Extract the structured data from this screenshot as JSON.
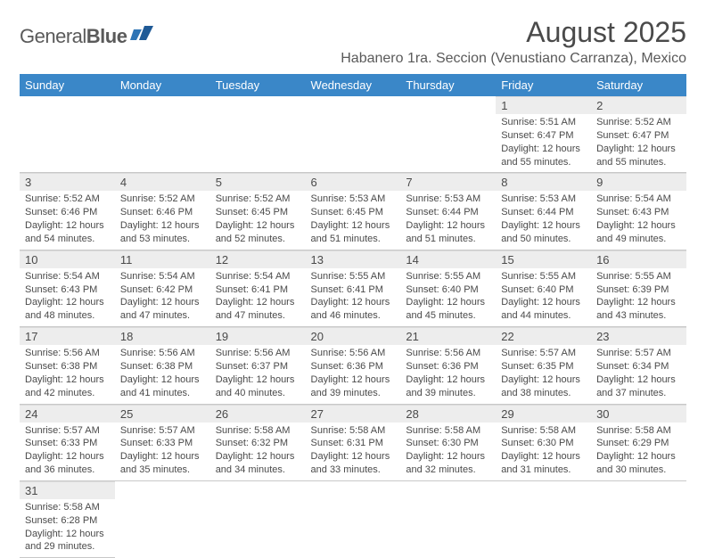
{
  "brand": {
    "name1": "General",
    "name2": "Blue"
  },
  "title": "August 2025",
  "location": "Habanero 1ra. Seccion (Venustiano Carranza), Mexico",
  "header_bg": "#3a87c8",
  "daynum_bg": "#ededed",
  "days": [
    "Sunday",
    "Monday",
    "Tuesday",
    "Wednesday",
    "Thursday",
    "Friday",
    "Saturday"
  ],
  "weeks": [
    [
      null,
      null,
      null,
      null,
      null,
      {
        "n": "1",
        "sr": "5:51 AM",
        "ss": "6:47 PM",
        "dl": "12 hours and 55 minutes."
      },
      {
        "n": "2",
        "sr": "5:52 AM",
        "ss": "6:47 PM",
        "dl": "12 hours and 55 minutes."
      }
    ],
    [
      {
        "n": "3",
        "sr": "5:52 AM",
        "ss": "6:46 PM",
        "dl": "12 hours and 54 minutes."
      },
      {
        "n": "4",
        "sr": "5:52 AM",
        "ss": "6:46 PM",
        "dl": "12 hours and 53 minutes."
      },
      {
        "n": "5",
        "sr": "5:52 AM",
        "ss": "6:45 PM",
        "dl": "12 hours and 52 minutes."
      },
      {
        "n": "6",
        "sr": "5:53 AM",
        "ss": "6:45 PM",
        "dl": "12 hours and 51 minutes."
      },
      {
        "n": "7",
        "sr": "5:53 AM",
        "ss": "6:44 PM",
        "dl": "12 hours and 51 minutes."
      },
      {
        "n": "8",
        "sr": "5:53 AM",
        "ss": "6:44 PM",
        "dl": "12 hours and 50 minutes."
      },
      {
        "n": "9",
        "sr": "5:54 AM",
        "ss": "6:43 PM",
        "dl": "12 hours and 49 minutes."
      }
    ],
    [
      {
        "n": "10",
        "sr": "5:54 AM",
        "ss": "6:43 PM",
        "dl": "12 hours and 48 minutes."
      },
      {
        "n": "11",
        "sr": "5:54 AM",
        "ss": "6:42 PM",
        "dl": "12 hours and 47 minutes."
      },
      {
        "n": "12",
        "sr": "5:54 AM",
        "ss": "6:41 PM",
        "dl": "12 hours and 47 minutes."
      },
      {
        "n": "13",
        "sr": "5:55 AM",
        "ss": "6:41 PM",
        "dl": "12 hours and 46 minutes."
      },
      {
        "n": "14",
        "sr": "5:55 AM",
        "ss": "6:40 PM",
        "dl": "12 hours and 45 minutes."
      },
      {
        "n": "15",
        "sr": "5:55 AM",
        "ss": "6:40 PM",
        "dl": "12 hours and 44 minutes."
      },
      {
        "n": "16",
        "sr": "5:55 AM",
        "ss": "6:39 PM",
        "dl": "12 hours and 43 minutes."
      }
    ],
    [
      {
        "n": "17",
        "sr": "5:56 AM",
        "ss": "6:38 PM",
        "dl": "12 hours and 42 minutes."
      },
      {
        "n": "18",
        "sr": "5:56 AM",
        "ss": "6:38 PM",
        "dl": "12 hours and 41 minutes."
      },
      {
        "n": "19",
        "sr": "5:56 AM",
        "ss": "6:37 PM",
        "dl": "12 hours and 40 minutes."
      },
      {
        "n": "20",
        "sr": "5:56 AM",
        "ss": "6:36 PM",
        "dl": "12 hours and 39 minutes."
      },
      {
        "n": "21",
        "sr": "5:56 AM",
        "ss": "6:36 PM",
        "dl": "12 hours and 39 minutes."
      },
      {
        "n": "22",
        "sr": "5:57 AM",
        "ss": "6:35 PM",
        "dl": "12 hours and 38 minutes."
      },
      {
        "n": "23",
        "sr": "5:57 AM",
        "ss": "6:34 PM",
        "dl": "12 hours and 37 minutes."
      }
    ],
    [
      {
        "n": "24",
        "sr": "5:57 AM",
        "ss": "6:33 PM",
        "dl": "12 hours and 36 minutes."
      },
      {
        "n": "25",
        "sr": "5:57 AM",
        "ss": "6:33 PM",
        "dl": "12 hours and 35 minutes."
      },
      {
        "n": "26",
        "sr": "5:58 AM",
        "ss": "6:32 PM",
        "dl": "12 hours and 34 minutes."
      },
      {
        "n": "27",
        "sr": "5:58 AM",
        "ss": "6:31 PM",
        "dl": "12 hours and 33 minutes."
      },
      {
        "n": "28",
        "sr": "5:58 AM",
        "ss": "6:30 PM",
        "dl": "12 hours and 32 minutes."
      },
      {
        "n": "29",
        "sr": "5:58 AM",
        "ss": "6:30 PM",
        "dl": "12 hours and 31 minutes."
      },
      {
        "n": "30",
        "sr": "5:58 AM",
        "ss": "6:29 PM",
        "dl": "12 hours and 30 minutes."
      }
    ],
    [
      {
        "n": "31",
        "sr": "5:58 AM",
        "ss": "6:28 PM",
        "dl": "12 hours and 29 minutes."
      },
      null,
      null,
      null,
      null,
      null,
      null
    ]
  ],
  "labels": {
    "sunrise": "Sunrise: ",
    "sunset": "Sunset: ",
    "daylight": "Daylight: "
  }
}
